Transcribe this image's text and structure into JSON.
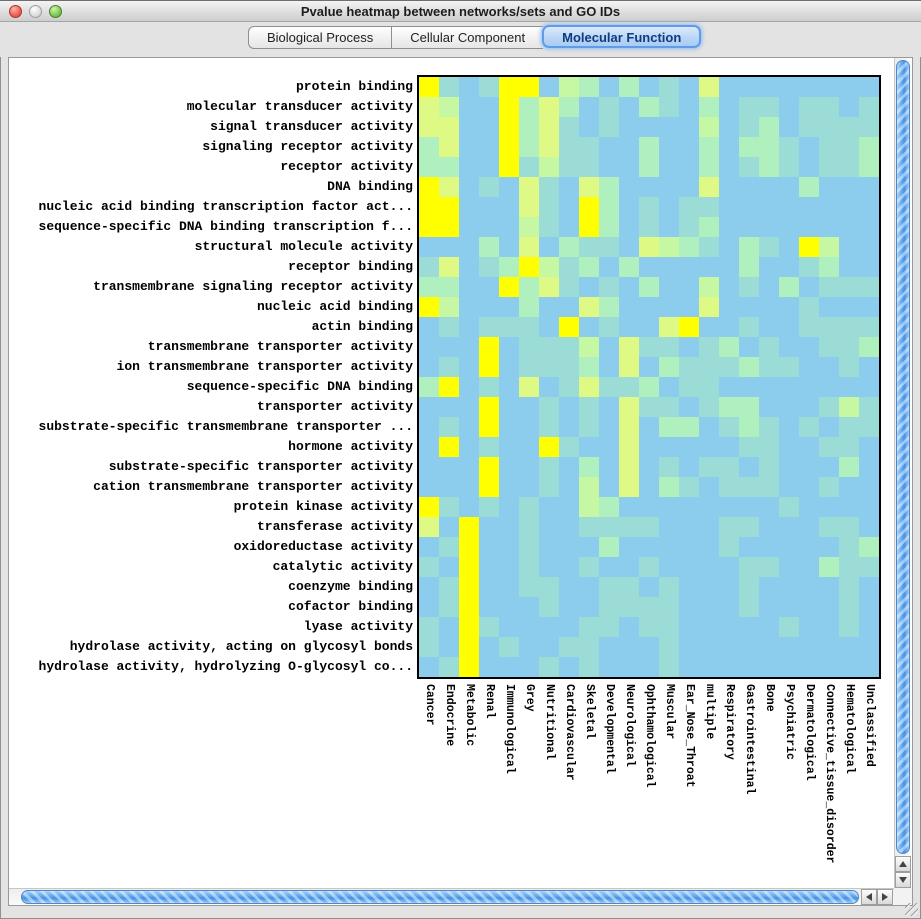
{
  "window": {
    "title": "Pvalue heatmap between networks/sets and GO IDs"
  },
  "tabs": [
    {
      "label": "Biological Process",
      "selected": false
    },
    {
      "label": "Cellular Component",
      "selected": false
    },
    {
      "label": "Molecular Function",
      "selected": true
    }
  ],
  "colors": {
    "tab_selected_border": "#5E9CE8",
    "scrollbar_accent": "#5CA4EF"
  },
  "chart_data": {
    "type": "heatmap",
    "rows": [
      "protein binding",
      "molecular transducer activity",
      "signal transducer activity",
      "signaling receptor activity",
      "receptor activity",
      "DNA binding",
      "nucleic acid binding transcription factor act...",
      "sequence-specific DNA binding transcription f...",
      "structural molecule activity",
      "receptor binding",
      "transmembrane signaling receptor activity",
      "nucleic acid binding",
      "actin binding",
      "transmembrane transporter activity",
      "ion transmembrane transporter activity",
      "sequence-specific DNA binding",
      "transporter activity",
      "substrate-specific transmembrane transporter ...",
      "hormone activity",
      "substrate-specific transporter activity",
      "cation transmembrane transporter activity",
      "protein kinase activity",
      "transferase activity",
      "oxidoreductase activity",
      "catalytic activity",
      "coenzyme binding",
      "cofactor binding",
      "lyase activity",
      "hydrolase activity, acting on glycosyl bonds",
      "hydrolase activity, hydrolyzing O-glycosyl co..."
    ],
    "columns": [
      "Cancer",
      "Endocrine",
      "Metabolic",
      "Renal",
      "Immunological",
      "Grey",
      "Nutritional",
      "Cardiovascular",
      "Skeletal",
      "Developmental",
      "Neurological",
      "Ophthamological",
      "Muscular",
      "Ear_Nose_Throat",
      "multiple",
      "Respiratory",
      "Gastrointestinal",
      "Bone",
      "Psychiatric",
      "Dermatological",
      "Connective_tissue_disorder",
      "Hematological",
      "Unclassified"
    ],
    "palette": {
      "b": "#8CCDEE",
      "t": "#9CDCD6",
      "m": "#AFF0BE",
      "l": "#C6F8A4",
      "g": "#DEFA85",
      "y": "#FFFF00"
    },
    "palette_meaning": "b=high pvalue (light blue) .. y=low pvalue (yellow)",
    "grid": [
      "ytbtyyblmbmbtbgbbbbbbbb",
      "glbbymgmbtbmtbmbttbttbt",
      "ggbbymgtbtbbbblbtmbtttt",
      "mgbbymgttbbmbbmbmmtbttm",
      "mmbbytlttbbmbbmbtmtbttm",
      "ygbtbgtbgmbbbbgbbbbmbbb",
      "yybbbgtbymbtbttbbbbbbbb",
      "yybbbltbymbtbtmbbbbbbbb",
      "bbbmbgbmttbglmtbmtbylbb",
      "tgbtmyltmbmbbbbbmbbtmbb",
      "mmbbymgtbtbmbblbtbmbttt",
      "ylbbbmbbgmbbbbgbbbbtbbb",
      "btbtttbybtbbgybbtbbtttt",
      "bbbybtttlbgttbtmbtbbttm",
      "btbybtttmbgbmtttmttbbtb",
      "mybtbgbtgttmbttbbbbbbbb",
      "bbbybbtbtbgttbtmmbbbtlt",
      "btbybbtbtbgbmmbtmtbtbtt",
      "bybtbbytbbgbbbbbttbbttb",
      "bbbybbtbmbgbtbttbtbbbmb",
      "bbbybbtblbgbmtbtttbbtbb",
      "ytbtbtbblmbbbbbbbbtbbbb",
      "gbybbtbbttttbbbttbbbttb",
      "btybbtbbbmbbbbbtbbbbbtm",
      "tbybbtbbtbbtbbbbttbbmtt",
      "btybbttbbttbtbbbtbbbbtb",
      "btybbbtbbttttbbbtbbbbtb",
      "tbytbbbbttbttbbbbbtbbtb",
      "tbybtbbttbbbtbbbbbbbbbb",
      "btybbbtbtbbbtbbbbbbbbbb"
    ]
  }
}
